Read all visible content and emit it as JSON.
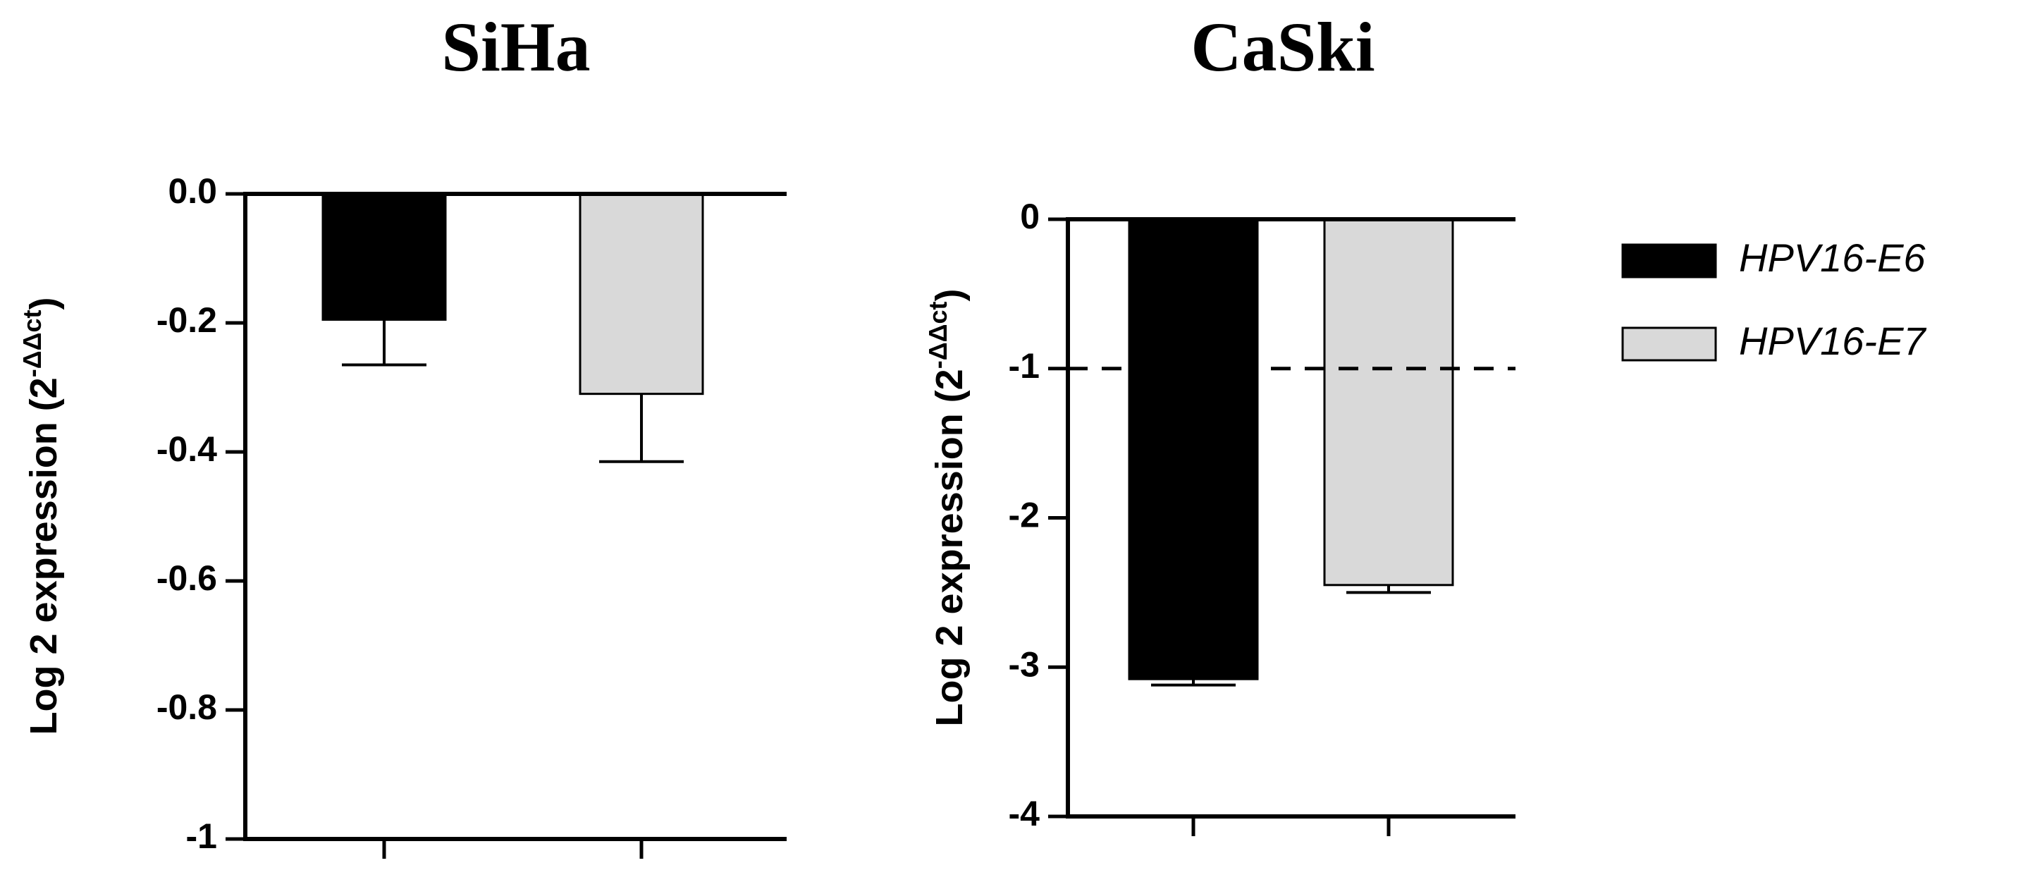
{
  "chart_data": [
    {
      "type": "bar",
      "title": "SiHa",
      "ylabel": "Log 2 expression (2",
      "ylabel_sup": "-ΔΔct",
      "ylabel_end": ")",
      "categories": [
        null,
        null
      ],
      "series": [
        {
          "color": "#000000",
          "values": [
            -0.195,
            null
          ],
          "errors": [
            0.07,
            null
          ]
        },
        {
          "color": "#d9d9d9",
          "values": [
            null,
            -0.31
          ],
          "errors": [
            null,
            0.105
          ]
        }
      ],
      "ylim": [
        -1,
        0
      ],
      "yticks": [
        {
          "value": 0,
          "label": "0.0"
        },
        -0.2,
        -0.4,
        -0.6,
        -0.8,
        -1
      ]
    },
    {
      "type": "bar",
      "title": "CaSki",
      "ylabel": "Log 2 expression (2",
      "ylabel_sup": "-ΔΔct",
      "ylabel_end": ")",
      "categories": [
        null,
        null
      ],
      "series": [
        {
          "name": "HPV16-E6",
          "color": "#000000",
          "values": [
            -3.08,
            null
          ],
          "errors": [
            0.04,
            null
          ]
        },
        {
          "name": "HPV16-E7",
          "color": "#d9d9d9",
          "values": [
            null,
            -2.45
          ],
          "errors": [
            null,
            0.05
          ]
        }
      ],
      "ylim": [
        -4,
        0
      ],
      "yticks": [
        0,
        -1,
        -2,
        -3,
        -4
      ],
      "hline": -1,
      "legend": "right"
    }
  ]
}
